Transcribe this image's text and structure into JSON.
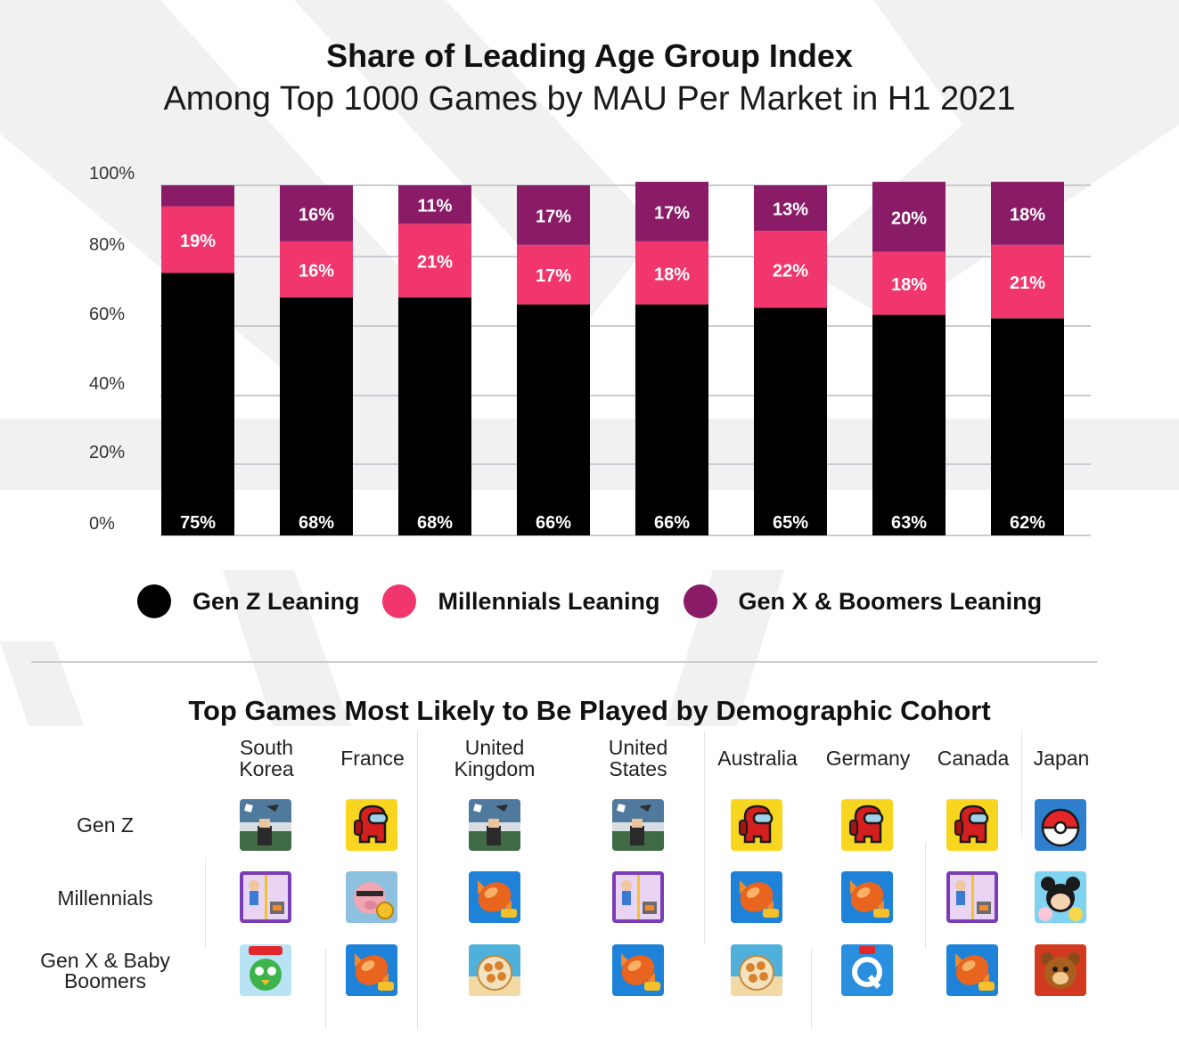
{
  "title": "Share of Leading Age Group Index",
  "subtitle": "Among Top 1000 Games by MAU Per Market in H1 2021",
  "colors": {
    "gen_z": "#000000",
    "millennials": "#f0366c",
    "gen_x_boomers": "#8a1c67",
    "gridline": "#c9ccd3"
  },
  "chart_data": {
    "type": "bar",
    "stacked": true,
    "y_ticks": [
      "0%",
      "20%",
      "40%",
      "60%",
      "80%",
      "100%"
    ],
    "ylim": [
      0,
      100
    ],
    "grid": true,
    "legend_position": "bottom",
    "categories": [
      "South Korea",
      "France",
      "United Kingdom",
      "United States",
      "Australia",
      "Germany",
      "Canada",
      "Japan"
    ],
    "series": [
      {
        "name": "Gen Z Leaning",
        "color": "#000000",
        "values": [
          75,
          68,
          68,
          66,
          66,
          65,
          63,
          62
        ],
        "labels": [
          "75%",
          "68%",
          "68%",
          "66%",
          "66%",
          "65%",
          "63%",
          "62%"
        ]
      },
      {
        "name": "Millennials Leaning",
        "color": "#f0366c",
        "values": [
          19,
          16,
          21,
          17,
          18,
          22,
          18,
          21
        ],
        "labels": [
          "19%",
          "16%",
          "21%",
          "17%",
          "18%",
          "22%",
          "18%",
          "21%"
        ]
      },
      {
        "name": "Gen X & Boomers Leaning",
        "color": "#8a1c67",
        "values": [
          6,
          16,
          11,
          17,
          17,
          13,
          20,
          18
        ],
        "labels": [
          "",
          "16%",
          "11%",
          "17%",
          "17%",
          "13%",
          "20%",
          "18%"
        ]
      }
    ]
  },
  "legend": [
    {
      "label": "Gen Z Leaning",
      "color": "#000000"
    },
    {
      "label": "Millennials Leaning",
      "color": "#f0366c"
    },
    {
      "label": "Gen X & Boomers Leaning",
      "color": "#8a1c67"
    }
  ],
  "games_table": {
    "title": "Top Games Most Likely to Be Played by Demographic Cohort",
    "countries": [
      "South\nKorea",
      "France",
      "United\nKingdom",
      "United\nStates",
      "Australia",
      "Germany",
      "Canada",
      "Japan"
    ],
    "rows": [
      {
        "label": "Gen Z",
        "icons": [
          "roblox-icon",
          "among-us-icon",
          "roblox-icon",
          "roblox-icon",
          "among-us-icon",
          "among-us-icon",
          "among-us-icon",
          "pokemon-go-icon"
        ]
      },
      {
        "label": "Millennials",
        "icons": [
          "hero-rescue-icon",
          "coin-master-icon",
          "candy-crush-icon",
          "hero-rescue-icon",
          "candy-crush-icon",
          "candy-crush-icon",
          "hero-rescue-icon",
          "tsum-tsum-icon"
        ]
      },
      {
        "label": "Gen X & Baby\nBoomers",
        "icons": [
          "anipang-icon",
          "candy-crush-icon",
          "word-game-icon",
          "candy-crush-icon",
          "word-game-icon",
          "quizduell-icon",
          "candy-crush-icon",
          "bear-puzzle-icon"
        ]
      }
    ]
  }
}
